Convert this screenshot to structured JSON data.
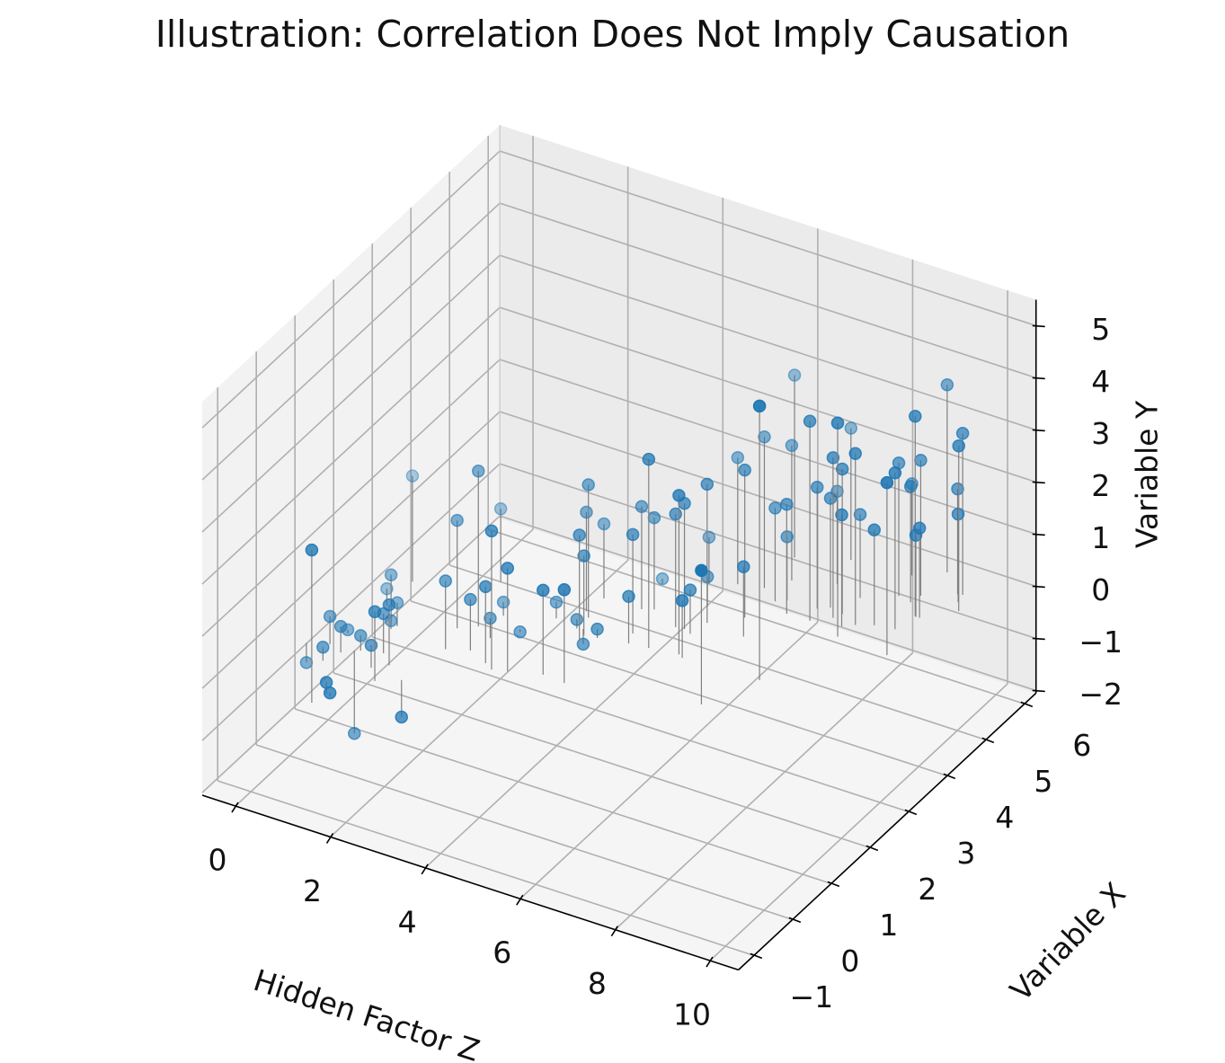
{
  "chart_data": {
    "type": "scatter3d",
    "title": "Illustration: Correlation Does Not Imply Causation",
    "zlabel_horizontal": "Hidden Factor Z",
    "xlabel_depth": "Variable X",
    "ylabel_vertical": "Variable Y",
    "axes": {
      "hidden_factor_z": {
        "label": "Hidden Factor Z",
        "range": [
          -0.7,
          10.6
        ],
        "ticks": [
          0,
          2,
          4,
          6,
          8,
          10
        ],
        "tick_labels": [
          "0",
          "2",
          "4",
          "6",
          "8",
          "10"
        ]
      },
      "variable_x": {
        "label": "Variable X",
        "range": [
          -1.4,
          6.3
        ],
        "ticks": [
          -1,
          0,
          1,
          2,
          3,
          4,
          5,
          6
        ],
        "tick_labels": [
          "−1",
          "0",
          "1",
          "2",
          "3",
          "4",
          "5",
          "6"
        ]
      },
      "variable_y": {
        "label": "Variable Y",
        "range": [
          -2.05,
          5.5
        ],
        "ticks": [
          -2,
          -1,
          0,
          1,
          2,
          3,
          4,
          5
        ],
        "tick_labels": [
          "−2",
          "−1",
          "0",
          "1",
          "2",
          "3",
          "4",
          "5"
        ]
      }
    },
    "grid": true,
    "stem_base_y": 0,
    "marker_color": "#1f77b4",
    "stem_color": "#808080",
    "points": [
      {
        "z": 1.25,
        "x": -0.96,
        "y": 2.93
      },
      {
        "z": 0.79,
        "x": 2.21,
        "y": 2.03
      },
      {
        "z": 2.57,
        "x": 1.73,
        "y": 2.98
      },
      {
        "z": 2.27,
        "x": 1.55,
        "y": 2.07
      },
      {
        "z": 2.17,
        "x": 2.8,
        "y": 1.4
      },
      {
        "z": 3.5,
        "x": 0.93,
        "y": 2.66
      },
      {
        "z": 4.14,
        "x": 2.65,
        "y": 2.55
      },
      {
        "z": 4.0,
        "x": 2.77,
        "y": 1.9
      },
      {
        "z": 4.06,
        "x": 3.15,
        "y": 1.43
      },
      {
        "z": 4.39,
        "x": 2.11,
        "y": 2.03
      },
      {
        "z": 4.37,
        "x": 2.25,
        "y": 1.53
      },
      {
        "z": 3.78,
        "x": 1.0,
        "y": 1.98
      },
      {
        "z": 2.44,
        "x": 1.04,
        "y": 1.31
      },
      {
        "z": 3.3,
        "x": 1.02,
        "y": 1.47
      },
      {
        "z": 2.85,
        "x": 1.18,
        "y": 0.98
      },
      {
        "z": 2.78,
        "x": 2.12,
        "y": 0.26
      },
      {
        "z": 2.95,
        "x": 1.57,
        "y": 0.38
      },
      {
        "z": 3.27,
        "x": 1.95,
        "y": -0.05
      },
      {
        "z": 4.39,
        "x": 1.17,
        "y": 1.62
      },
      {
        "z": 4.86,
        "x": 1.14,
        "y": 1.79
      },
      {
        "z": 3.65,
        "x": 2.42,
        "y": 0.31
      },
      {
        "z": 4.14,
        "x": 2.35,
        "y": 0.17
      },
      {
        "z": 4.62,
        "x": 2.29,
        "y": 0.17
      },
      {
        "z": 4.25,
        "x": 2.38,
        "y": -0.29
      },
      {
        "z": 1.13,
        "x": 1.24,
        "y": 0.9
      },
      {
        "z": 0.78,
        "x": 1.56,
        "y": 0.31
      },
      {
        "z": 1.83,
        "x": 0.33,
        "y": 1.16
      },
      {
        "z": 1.3,
        "x": 1.19,
        "y": 0.45
      },
      {
        "z": 1.25,
        "x": 1.09,
        "y": 0.16
      },
      {
        "z": 1.87,
        "x": -0.09,
        "y": 1.33
      },
      {
        "z": 1.54,
        "x": 0.54,
        "y": 0.76
      },
      {
        "z": 0.55,
        "x": 0.37,
        "y": 0.53
      },
      {
        "z": 0.86,
        "x": 0.27,
        "y": 0.5
      },
      {
        "z": 0.65,
        "x": 0.71,
        "y": 0.07
      },
      {
        "z": 1.14,
        "x": 0.44,
        "y": 0.29
      },
      {
        "z": 1.59,
        "x": 0.16,
        "y": 0.43
      },
      {
        "z": 0.72,
        "x": -0.02,
        "y": 0.26
      },
      {
        "z": 0.16,
        "x": 0.24,
        "y": -0.38
      },
      {
        "z": 1.33,
        "x": -0.68,
        "y": 0.22
      },
      {
        "z": 1.43,
        "x": -0.71,
        "y": 0.07
      },
      {
        "z": 1.04,
        "x": 0.4,
        "y": -1.59
      },
      {
        "z": 2.27,
        "x": 0.11,
        "y": -0.71
      },
      {
        "z": 6.35,
        "x": 5.27,
        "y": 3.5
      },
      {
        "z": 7.86,
        "x": 2.51,
        "y": 5.26
      },
      {
        "z": 6.39,
        "x": 4.44,
        "y": 2.9
      },
      {
        "z": 6.69,
        "x": 4.78,
        "y": 2.59
      },
      {
        "z": 7.65,
        "x": 4.07,
        "y": 3.83
      },
      {
        "z": 8.35,
        "x": 3.93,
        "y": 4.1
      },
      {
        "z": 7.27,
        "x": 5.6,
        "y": 2.53
      },
      {
        "z": 5.91,
        "x": 4.34,
        "y": 2.43
      },
      {
        "z": 6.58,
        "x": 3.7,
        "y": 2.83
      },
      {
        "z": 5.59,
        "x": 2.43,
        "y": 3.62
      },
      {
        "z": 6.08,
        "x": 3.34,
        "y": 2.66
      },
      {
        "z": 6.17,
        "x": 2.5,
        "y": 3.05
      },
      {
        "z": 5.83,
        "x": 3.06,
        "y": 2.41
      },
      {
        "z": 5.66,
        "x": 3.04,
        "y": 2.17
      },
      {
        "z": 4.83,
        "x": 3.18,
        "y": 1.97
      },
      {
        "z": 5.03,
        "x": 3.26,
        "y": 1.76
      },
      {
        "z": 5.1,
        "x": 2.62,
        "y": 1.9
      },
      {
        "z": 5.2,
        "x": 2.39,
        "y": 0.9
      },
      {
        "z": 4.73,
        "x": 3.84,
        "y": 0.1
      },
      {
        "z": 6.28,
        "x": 2.45,
        "y": 1.1
      },
      {
        "z": 6.0,
        "x": 3.0,
        "y": 0.84
      },
      {
        "z": 7.36,
        "x": 1.62,
        "y": 2.57
      },
      {
        "z": 5.81,
        "x": 3.68,
        "y": 0.57
      },
      {
        "z": 5.46,
        "x": 4.15,
        "y": 0.9
      },
      {
        "z": 6.88,
        "x": 3.3,
        "y": 1.34
      },
      {
        "z": 6.78,
        "x": 4.24,
        "y": 1.79
      },
      {
        "z": 7.17,
        "x": 4.06,
        "y": 2.1
      },
      {
        "z": 6.95,
        "x": 4.34,
        "y": 1.22
      },
      {
        "z": 7.56,
        "x": 4.37,
        "y": 2.33
      },
      {
        "z": 7.75,
        "x": 4.48,
        "y": 2.1
      },
      {
        "z": 7.46,
        "x": 5.01,
        "y": 1.78
      },
      {
        "z": 8.24,
        "x": 4.17,
        "y": 2.14
      },
      {
        "z": 7.96,
        "x": 4.29,
        "y": 3.07
      },
      {
        "z": 8.04,
        "x": 4.43,
        "y": 2.78
      },
      {
        "z": 8.43,
        "x": 4.29,
        "y": 3.29
      },
      {
        "z": 8.05,
        "x": 4.88,
        "y": 1.6
      },
      {
        "z": 8.73,
        "x": 4.41,
        "y": 1.83
      },
      {
        "z": 9.43,
        "x": 3.88,
        "y": 3.31
      },
      {
        "z": 9.12,
        "x": 4.47,
        "y": 3.0
      },
      {
        "z": 8.62,
        "x": 5.18,
        "y": 2.55
      },
      {
        "z": 8.48,
        "x": 5.69,
        "y": 1.76
      },
      {
        "z": 8.91,
        "x": 5.13,
        "y": 2.22
      },
      {
        "z": 8.96,
        "x": 5.33,
        "y": 2.6
      },
      {
        "z": 9.21,
        "x": 4.88,
        "y": 3.83
      },
      {
        "z": 9.31,
        "x": 4.87,
        "y": 1.72
      },
      {
        "z": 9.24,
        "x": 4.86,
        "y": 1.57
      },
      {
        "z": 8.98,
        "x": 5.99,
        "y": 3.6
      },
      {
        "z": 9.6,
        "x": 5.63,
        "y": 3.1
      },
      {
        "z": 9.81,
        "x": 5.27,
        "y": 3.17
      },
      {
        "z": 9.51,
        "x": 5.61,
        "y": 2.02
      },
      {
        "z": 9.65,
        "x": 5.45,
        "y": 1.69
      }
    ]
  }
}
